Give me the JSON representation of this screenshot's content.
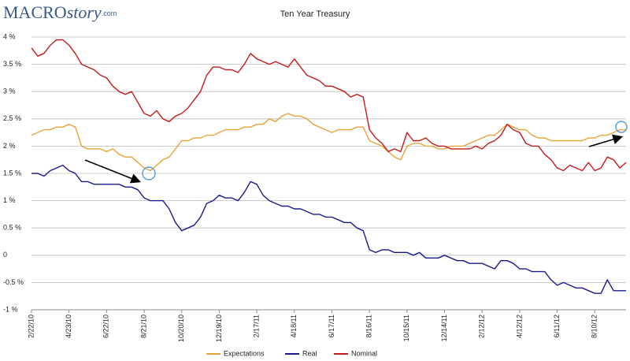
{
  "brand": {
    "name": "MACRO",
    "suffix": "story",
    "domain": ".com"
  },
  "chart_data": {
    "type": "line",
    "title": "Ten Year Treasury",
    "categories": [
      "2/22/10",
      null,
      null,
      null,
      null,
      null,
      "4/23/10",
      null,
      null,
      null,
      null,
      null,
      "6/22/10",
      null,
      null,
      null,
      null,
      null,
      "8/21/10",
      null,
      null,
      null,
      null,
      null,
      "10/20/10",
      null,
      null,
      null,
      null,
      null,
      "12/19/10",
      null,
      null,
      null,
      null,
      null,
      "2/17/11",
      null,
      null,
      null,
      null,
      null,
      "4/18/11",
      null,
      null,
      null,
      null,
      null,
      "6/17/11",
      null,
      null,
      null,
      null,
      null,
      "8/16/11",
      null,
      null,
      null,
      null,
      null,
      "10/15/11",
      null,
      null,
      null,
      null,
      null,
      "12/14/11",
      null,
      null,
      null,
      null,
      null,
      "2/12/12",
      null,
      null,
      null,
      null,
      null,
      "4/12/12",
      null,
      null,
      null,
      null,
      null,
      "6/11/12",
      null,
      null,
      null,
      null,
      null,
      "8/10/12",
      null,
      null,
      null,
      null,
      null
    ],
    "series": [
      {
        "name": "Expectations",
        "color": "#e8a33a",
        "values": [
          2.2,
          2.25,
          2.3,
          2.3,
          2.35,
          2.35,
          2.4,
          2.35,
          2.0,
          1.95,
          1.95,
          1.95,
          1.9,
          1.95,
          1.85,
          1.8,
          1.8,
          1.7,
          1.6,
          1.55,
          1.65,
          1.75,
          1.8,
          1.95,
          2.1,
          2.1,
          2.15,
          2.15,
          2.2,
          2.2,
          2.25,
          2.3,
          2.3,
          2.3,
          2.35,
          2.35,
          2.4,
          2.4,
          2.5,
          2.45,
          2.55,
          2.6,
          2.55,
          2.55,
          2.5,
          2.4,
          2.35,
          2.3,
          2.25,
          2.3,
          2.3,
          2.3,
          2.35,
          2.35,
          2.1,
          2.05,
          2.0,
          1.9,
          1.8,
          1.75,
          2.0,
          2.05,
          2.05,
          2.0,
          2.0,
          1.95,
          1.95,
          2.0,
          2.0,
          2.0,
          2.05,
          2.1,
          2.15,
          2.2,
          2.2,
          2.3,
          2.4,
          2.35,
          2.3,
          2.3,
          2.2,
          2.15,
          2.15,
          2.1,
          2.1,
          2.1,
          2.1,
          2.1,
          2.1,
          2.15,
          2.15,
          2.2,
          2.2,
          2.25,
          2.3,
          2.3
        ]
      },
      {
        "name": "Real",
        "color": "#1a1a8c",
        "values": [
          1.5,
          1.5,
          1.45,
          1.55,
          1.6,
          1.65,
          1.55,
          1.5,
          1.35,
          1.35,
          1.3,
          1.3,
          1.3,
          1.3,
          1.3,
          1.25,
          1.25,
          1.2,
          1.05,
          1.0,
          1.0,
          1.0,
          0.85,
          0.6,
          0.45,
          0.5,
          0.55,
          0.7,
          0.95,
          1.0,
          1.1,
          1.05,
          1.05,
          1.0,
          1.15,
          1.35,
          1.3,
          1.1,
          1.0,
          0.95,
          0.9,
          0.9,
          0.85,
          0.85,
          0.8,
          0.75,
          0.75,
          0.7,
          0.7,
          0.65,
          0.6,
          0.6,
          0.5,
          0.45,
          0.1,
          0.05,
          0.1,
          0.1,
          0.05,
          0.05,
          0.05,
          0.0,
          0.05,
          -0.05,
          -0.05,
          -0.05,
          0.0,
          -0.05,
          -0.1,
          -0.1,
          -0.15,
          -0.15,
          -0.15,
          -0.2,
          -0.25,
          -0.1,
          -0.1,
          -0.15,
          -0.25,
          -0.25,
          -0.3,
          -0.3,
          -0.3,
          -0.45,
          -0.55,
          -0.5,
          -0.55,
          -0.6,
          -0.6,
          -0.65,
          -0.7,
          -0.7,
          -0.45,
          -0.65,
          -0.65,
          -0.65
        ]
      },
      {
        "name": "Nominal",
        "color": "#c41a1a",
        "values": [
          3.8,
          3.65,
          3.7,
          3.85,
          3.95,
          3.95,
          3.85,
          3.7,
          3.5,
          3.45,
          3.4,
          3.3,
          3.25,
          3.1,
          3.0,
          2.95,
          3.0,
          2.8,
          2.6,
          2.55,
          2.65,
          2.5,
          2.45,
          2.55,
          2.6,
          2.7,
          2.85,
          3.0,
          3.3,
          3.45,
          3.45,
          3.4,
          3.4,
          3.35,
          3.5,
          3.7,
          3.6,
          3.55,
          3.5,
          3.55,
          3.5,
          3.45,
          3.6,
          3.45,
          3.3,
          3.25,
          3.2,
          3.1,
          3.1,
          3.05,
          3.0,
          2.9,
          2.95,
          2.9,
          2.3,
          2.15,
          2.05,
          1.9,
          1.95,
          1.9,
          2.25,
          2.1,
          2.1,
          2.15,
          2.05,
          2.0,
          2.0,
          1.95,
          1.95,
          1.95,
          1.95,
          2.0,
          1.95,
          2.05,
          2.1,
          2.2,
          2.4,
          2.3,
          2.25,
          2.05,
          2.0,
          2.0,
          1.85,
          1.75,
          1.6,
          1.55,
          1.65,
          1.6,
          1.55,
          1.7,
          1.55,
          1.6,
          1.8,
          1.75,
          1.6,
          1.7
        ]
      }
    ],
    "ylim": [
      -1,
      4
    ],
    "yticks": [
      {
        "value": -1,
        "label": "-1 %"
      },
      {
        "value": -0.5,
        "label": "-0.5 %"
      },
      0,
      {
        "value": 0.5,
        "label": "0.5 %"
      },
      {
        "value": 1,
        "label": "1 %"
      },
      {
        "value": 1.5,
        "label": "1.5 %"
      },
      {
        "value": 2,
        "label": "2 %"
      },
      {
        "value": 2.5,
        "label": "2.5 %"
      },
      {
        "value": 3,
        "label": "3 %"
      },
      {
        "value": 3.5,
        "label": "3.5 %"
      },
      {
        "value": 4,
        "label": "4 %"
      }
    ],
    "grid": true,
    "legend": "bottom"
  }
}
